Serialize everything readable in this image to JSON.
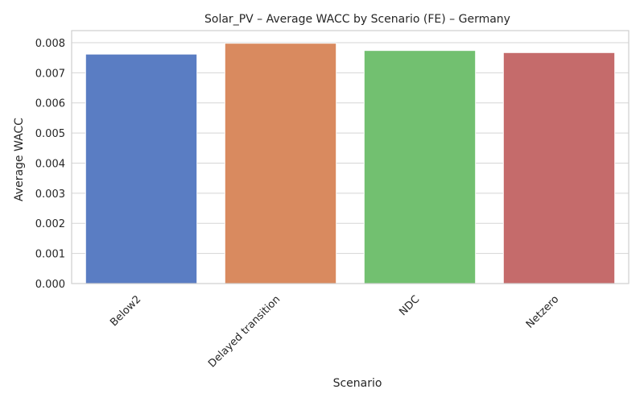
{
  "chart_data": {
    "type": "bar",
    "title": "Solar_PV – Average WACC by Scenario (FE) – Germany",
    "xlabel": "Scenario",
    "ylabel": "Average WACC",
    "categories": [
      "Below2",
      "Delayed transition",
      "NDC",
      "Netzero"
    ],
    "values": [
      0.00762,
      0.00798,
      0.00774,
      0.00767
    ],
    "colors": [
      "#5a7dc3",
      "#d98a5f",
      "#72c070",
      "#c56b6b"
    ],
    "ylim": [
      0,
      0.0084
    ],
    "yticks": [
      "0.000",
      "0.001",
      "0.002",
      "0.003",
      "0.004",
      "0.005",
      "0.006",
      "0.007",
      "0.008"
    ],
    "grid": true,
    "legend": "none"
  }
}
